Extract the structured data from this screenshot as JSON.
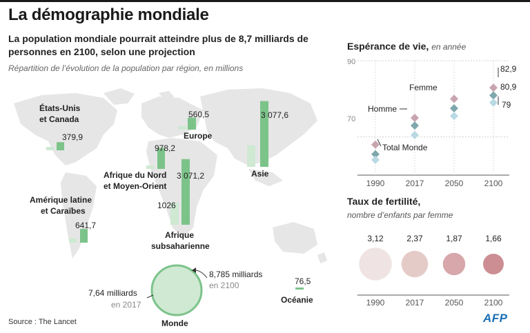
{
  "header": {
    "title": "La démographie mondiale",
    "subtitle": "La population mondiale pourrait atteindre plus de 8,7 milliards de personnes en 2100, selon une projection",
    "note": "Répartition de l’évolution de la population par région, en millions"
  },
  "footer": {
    "source": "Source : The Lancet",
    "brand": "AFP"
  },
  "colors": {
    "bar_2017": "#cfe9d3",
    "bar_2100": "#7cc38a",
    "map": "#e6e6e6",
    "female": "#c8a4ae",
    "male": "#7fa8ae",
    "total": "#b9d9e3",
    "fertility": [
      "#efe4e3",
      "#e5cbc8",
      "#d7a7ab",
      "#cc8e93"
    ]
  },
  "chart_data": [
    {
      "type": "bar",
      "series": [
        {
          "name": "2017",
          "values": [
            null,
            null,
            null,
            null,
            1026,
            null,
            null,
            7640
          ]
        },
        {
          "name": "2100",
          "values": [
            379.9,
            641.7,
            560.5,
            978.2,
            3071.2,
            3077.6,
            76.5,
            8785
          ]
        }
      ],
      "categories": [
        "États-Unis et Canada",
        "Amérique latine et Caraïbes",
        "Europe",
        "Afrique du Nord et Moyen-Orient",
        "Afrique subsaharienne",
        "Asie",
        "Océanie",
        "Monde"
      ],
      "labels": [
        "379,9",
        "641,7",
        "560,5",
        "978,2",
        "3 071,2",
        "3 077,6",
        "76,5"
      ],
      "label_2017_ssa": "1026",
      "world": {
        "name": "Monde",
        "label_2017": "7,64 milliards",
        "year_2017": "en 2017",
        "label_2100": "8,785 milliards",
        "year_2100": "en 2100"
      }
    },
    {
      "type": "scatter",
      "title": "Espérance de vie,",
      "subtitle": "en année",
      "x": [
        "1990",
        "2017",
        "2050",
        "2100"
      ],
      "ylim": [
        60,
        90
      ],
      "yticks": [
        "70",
        "90"
      ],
      "series": [
        {
          "name": "Femme",
          "values": [
            68,
            75,
            80,
            82.9
          ]
        },
        {
          "name": "Homme",
          "values": [
            65.5,
            73,
            77.5,
            80.9
          ]
        },
        {
          "name": "Total Monde",
          "values": [
            64,
            70.5,
            75.5,
            79
          ]
        }
      ],
      "end_labels": [
        "82,9",
        "80,9",
        "79"
      ]
    },
    {
      "type": "bubble",
      "title": "Taux de fertilité,",
      "subtitle": "nombre d’enfants par femme",
      "categories": [
        "1990",
        "2017",
        "2050",
        "2100"
      ],
      "values": [
        3.12,
        2.37,
        1.87,
        1.66
      ],
      "labels": [
        "3,12",
        "2,37",
        "1,87",
        "1,66"
      ]
    }
  ]
}
